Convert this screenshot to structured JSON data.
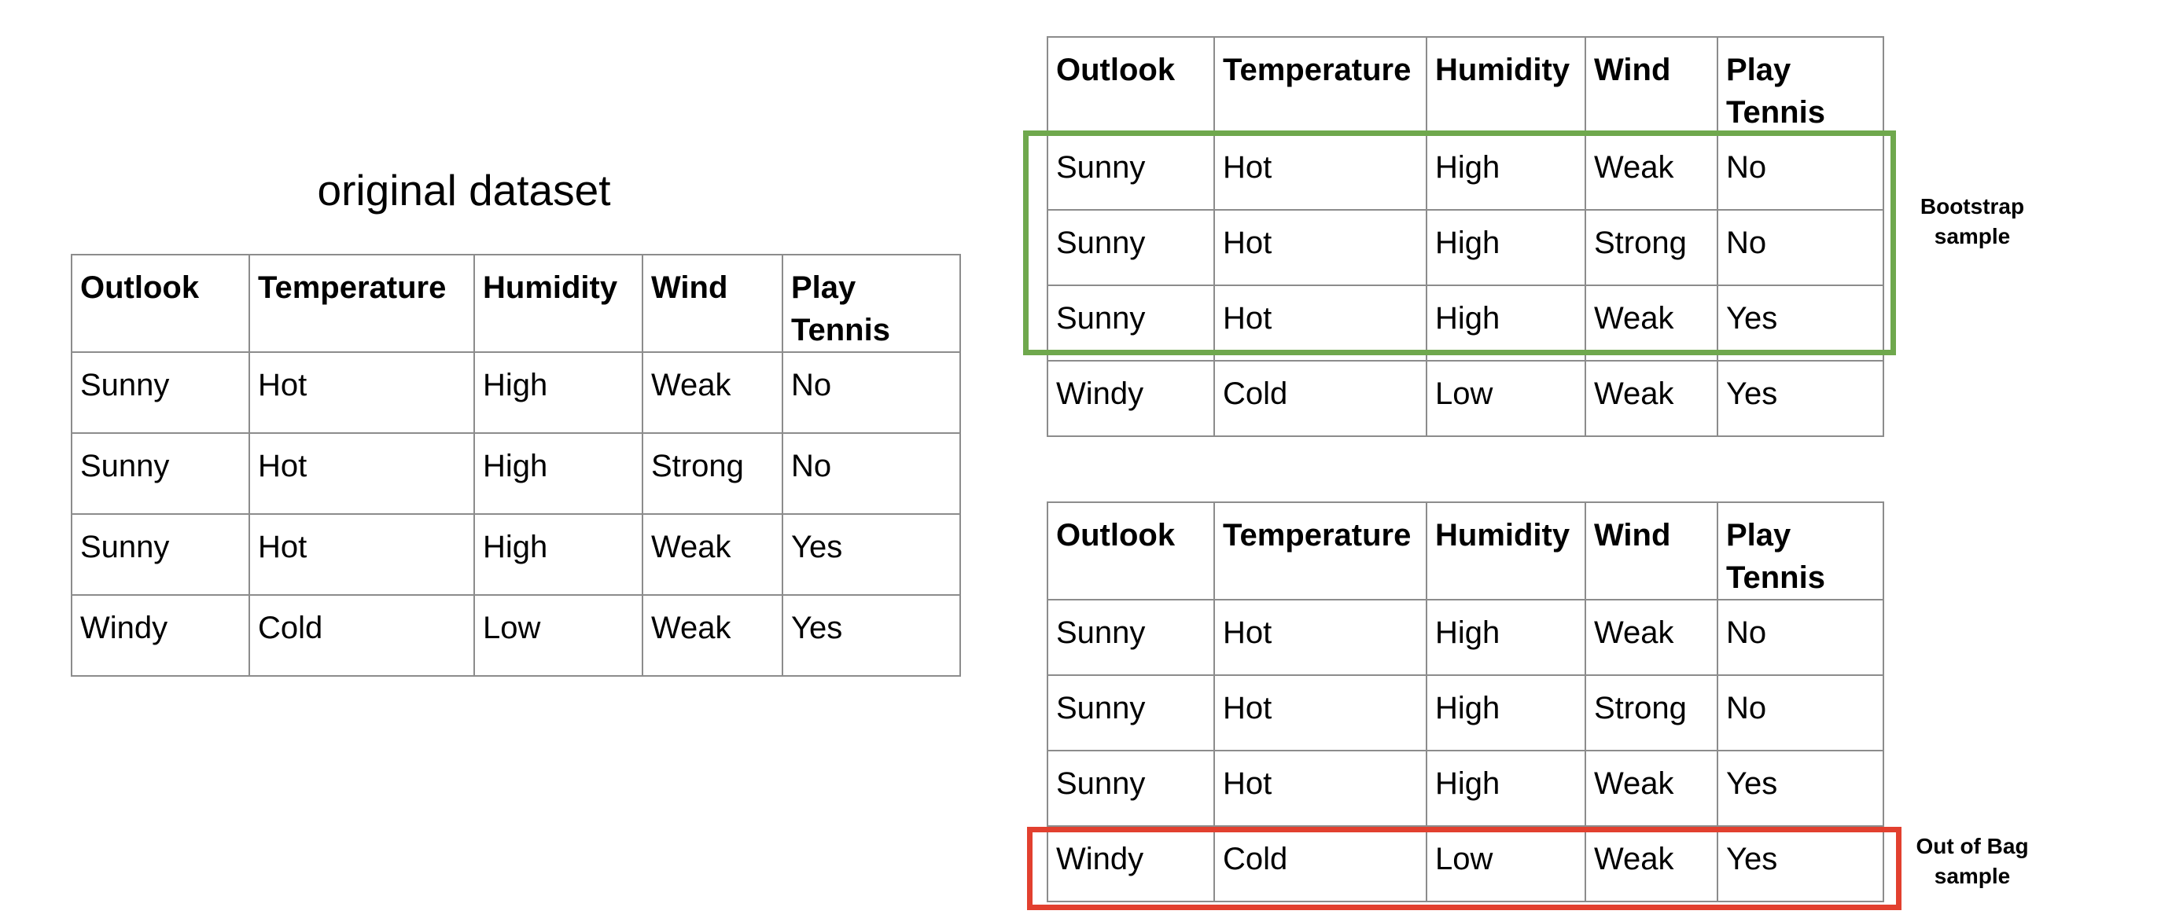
{
  "original": {
    "title": "original dataset",
    "headers": [
      "Outlook",
      "Temperature",
      "Humidity",
      "Wind",
      "Play Tennis"
    ],
    "rows": [
      [
        "Sunny",
        "Hot",
        "High",
        "Weak",
        "No"
      ],
      [
        "Sunny",
        "Hot",
        "High",
        "Strong",
        "No"
      ],
      [
        "Sunny",
        "Hot",
        "High",
        "Weak",
        "Yes"
      ],
      [
        "Windy",
        "Cold",
        "Low",
        "Weak",
        "Yes"
      ]
    ]
  },
  "bootstrap": {
    "label": "Bootstrap sample",
    "highlight_color": "#6fa84d",
    "highlighted_rows": [
      1,
      2,
      3
    ],
    "headers": [
      "Outlook",
      "Temperature",
      "Humidity",
      "Wind",
      "Play Tennis"
    ],
    "rows": [
      [
        "Sunny",
        "Hot",
        "High",
        "Weak",
        "No"
      ],
      [
        "Sunny",
        "Hot",
        "High",
        "Strong",
        "No"
      ],
      [
        "Sunny",
        "Hot",
        "High",
        "Weak",
        "Yes"
      ],
      [
        "Windy",
        "Cold",
        "Low",
        "Weak",
        "Yes"
      ]
    ]
  },
  "out_of_bag": {
    "label": "Out of Bag sample",
    "highlight_color": "#e2402f",
    "highlighted_rows": [
      4
    ],
    "headers": [
      "Outlook",
      "Temperature",
      "Humidity",
      "Wind",
      "Play Tennis"
    ],
    "rows": [
      [
        "Sunny",
        "Hot",
        "High",
        "Weak",
        "No"
      ],
      [
        "Sunny",
        "Hot",
        "High",
        "Strong",
        "No"
      ],
      [
        "Sunny",
        "Hot",
        "High",
        "Weak",
        "Yes"
      ],
      [
        "Windy",
        "Cold",
        "Low",
        "Weak",
        "Yes"
      ]
    ]
  }
}
